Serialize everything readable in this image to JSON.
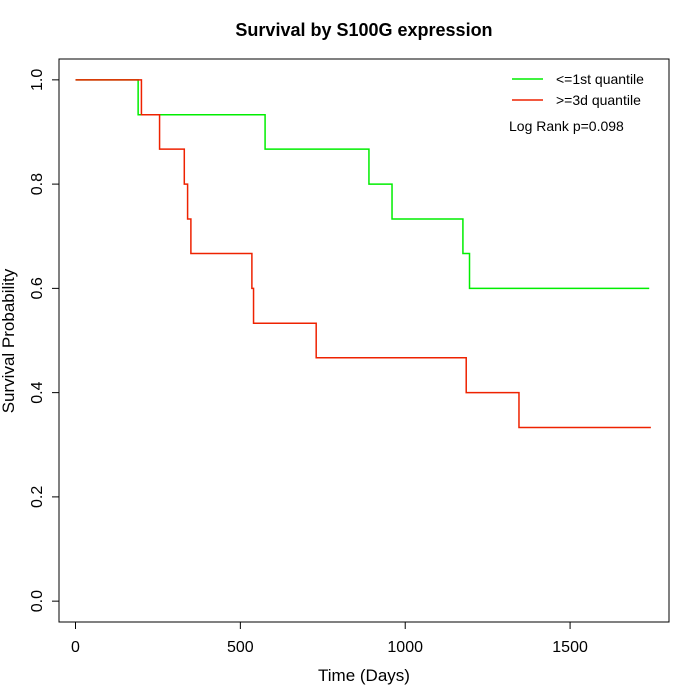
{
  "chart_data": {
    "type": "line",
    "title": "Survival by S100G expression",
    "xlabel": "Time (Days)",
    "ylabel": "Survival Probability",
    "xlim": [
      -50,
      1800
    ],
    "ylim": [
      -0.04,
      1.04
    ],
    "x_ticks": [
      0,
      500,
      1000,
      1500
    ],
    "x_tick_labels": [
      "0",
      "500",
      "1000",
      "1500"
    ],
    "y_ticks": [
      0.0,
      0.2,
      0.4,
      0.6,
      0.8,
      1.0
    ],
    "y_tick_labels": [
      "0.0",
      "0.2",
      "0.4",
      "0.6",
      "0.8",
      "1.0"
    ],
    "grid": false,
    "legend_position": "top-right",
    "annotation": "Log Rank p=0.098",
    "series": [
      {
        "name": "<=1st quantile",
        "color": "#00ee00",
        "step": true,
        "x": [
          0,
          190,
          575,
          890,
          960,
          1175,
          1195,
          1740
        ],
        "y": [
          1.0,
          0.933,
          0.867,
          0.8,
          0.733,
          0.667,
          0.6,
          0.6
        ]
      },
      {
        "name": ">=3d quantile",
        "color": "#ee2200",
        "step": true,
        "x": [
          0,
          200,
          255,
          330,
          340,
          350,
          535,
          540,
          730,
          1185,
          1345,
          1745
        ],
        "y": [
          1.0,
          0.933,
          0.867,
          0.8,
          0.733,
          0.667,
          0.6,
          0.533,
          0.467,
          0.4,
          0.333,
          0.333
        ]
      }
    ]
  }
}
